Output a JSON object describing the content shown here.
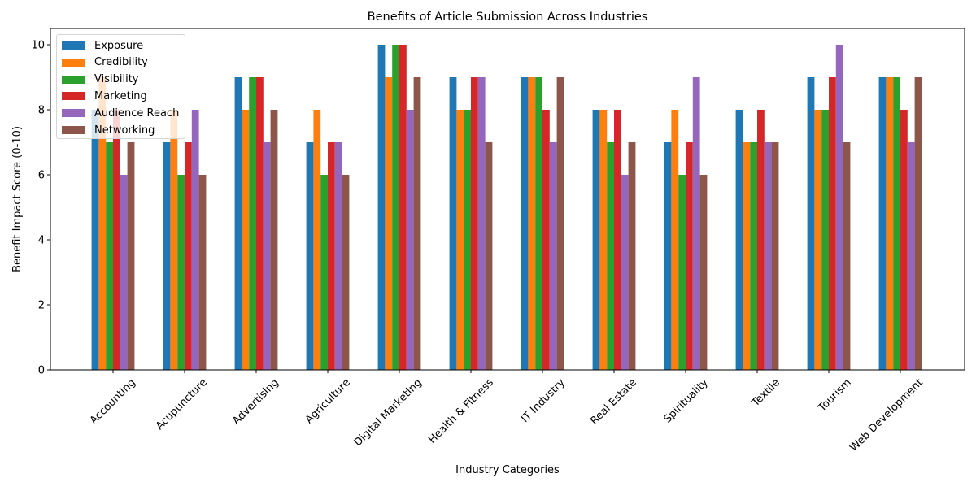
{
  "chart_data": {
    "type": "bar",
    "title": "Benefits of Article Submission Across Industries",
    "xlabel": "Industry Categories",
    "ylabel": "Benefit Impact Score (0-10)",
    "ylim": [
      0,
      10.5
    ],
    "yticks": [
      0,
      2,
      4,
      6,
      8,
      10
    ],
    "grid": false,
    "legend_position": "upper left",
    "categories": [
      "Accounting",
      "Acupuncture",
      "Advertising",
      "Agriculture",
      "Digital Marketing",
      "Health & Fitness",
      "IT Industry",
      "Real Estate",
      "Spirituality",
      "Textile",
      "Tourism",
      "Web Development"
    ],
    "series": [
      {
        "name": "Exposure",
        "color": "#1f77b4",
        "values": [
          8,
          7,
          9,
          7,
          10,
          9,
          9,
          8,
          7,
          8,
          9,
          9
        ]
      },
      {
        "name": "Credibility",
        "color": "#ff7f0e",
        "values": [
          9,
          8,
          8,
          8,
          9,
          8,
          9,
          8,
          8,
          7,
          8,
          9
        ]
      },
      {
        "name": "Visibility",
        "color": "#2ca02c",
        "values": [
          7,
          6,
          9,
          6,
          10,
          8,
          9,
          7,
          6,
          7,
          8,
          9
        ]
      },
      {
        "name": "Marketing",
        "color": "#d62728",
        "values": [
          8,
          7,
          9,
          7,
          10,
          9,
          8,
          8,
          7,
          8,
          9,
          8
        ]
      },
      {
        "name": "Audience Reach",
        "color": "#9467bd",
        "values": [
          6,
          8,
          7,
          7,
          8,
          9,
          7,
          6,
          9,
          7,
          10,
          7
        ]
      },
      {
        "name": "Networking",
        "color": "#8c564b",
        "values": [
          7,
          6,
          8,
          6,
          9,
          7,
          9,
          7,
          6,
          7,
          7,
          9
        ]
      }
    ]
  }
}
